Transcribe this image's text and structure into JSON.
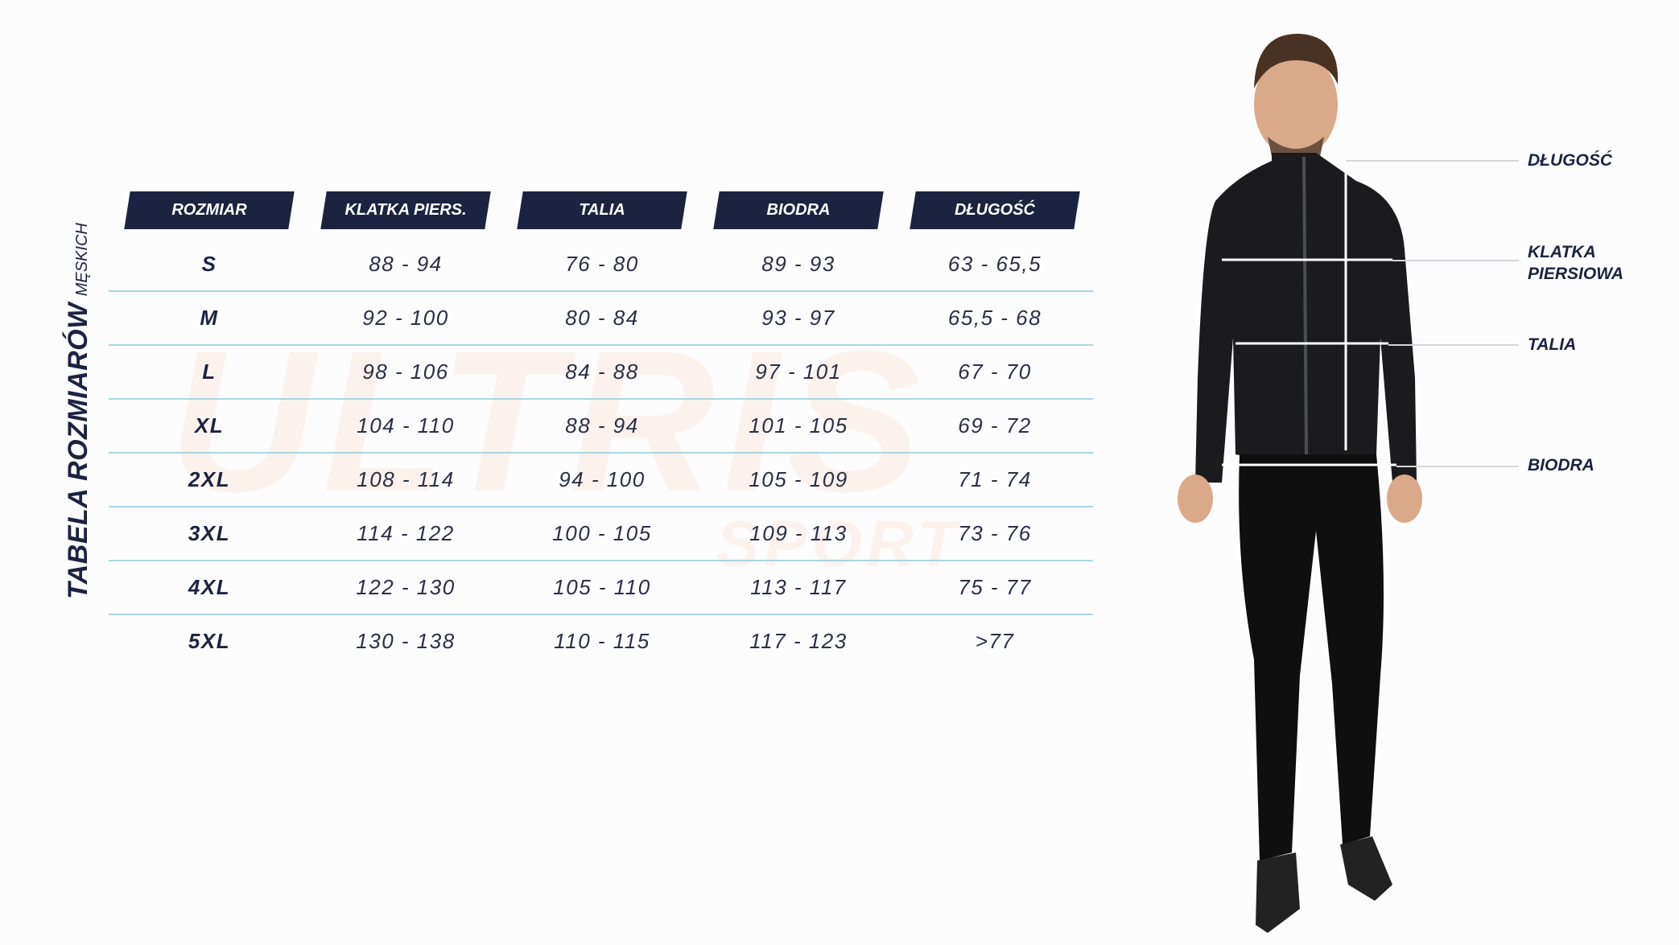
{
  "title": {
    "main": "TABELA ROZMIARÓW",
    "sub": "MĘSKICH"
  },
  "watermark": {
    "main": "ULTRIS",
    "sub": "SPORT"
  },
  "columns": [
    "ROZMIAR",
    "KLATKA PIERS.",
    "TALIA",
    "BIODRA",
    "DŁUGOŚĆ"
  ],
  "rows": [
    [
      "S",
      "88 - 94",
      "76 - 80",
      "89 - 93",
      "63 - 65,5"
    ],
    [
      "M",
      "92 - 100",
      "80 - 84",
      "93 - 97",
      "65,5 - 68"
    ],
    [
      "L",
      "98 - 106",
      "84 - 88",
      "97 - 101",
      "67 - 70"
    ],
    [
      "XL",
      "104 - 110",
      "88 - 94",
      "101 - 105",
      "69 - 72"
    ],
    [
      "2XL",
      "108 - 114",
      "94 - 100",
      "105 - 109",
      "71 - 74"
    ],
    [
      "3XL",
      "114 - 122",
      "100 - 105",
      "109 - 113",
      "73 - 76"
    ],
    [
      "4XL",
      "122 - 130",
      "105 - 110",
      "113 - 117",
      "75 - 77"
    ],
    [
      "5XL",
      "130 - 138",
      "110 - 115",
      "117 - 123",
      ">77"
    ]
  ],
  "measure_labels": {
    "length": "DŁUGOŚĆ",
    "chest_1": "KLATKA",
    "chest_2": "PIERSIOWA",
    "waist": "TALIA",
    "hips": "BIODRA"
  },
  "colors": {
    "header_bg": "#1c2340",
    "row_line": "#a9d6e0",
    "watermark": "#f07832"
  }
}
